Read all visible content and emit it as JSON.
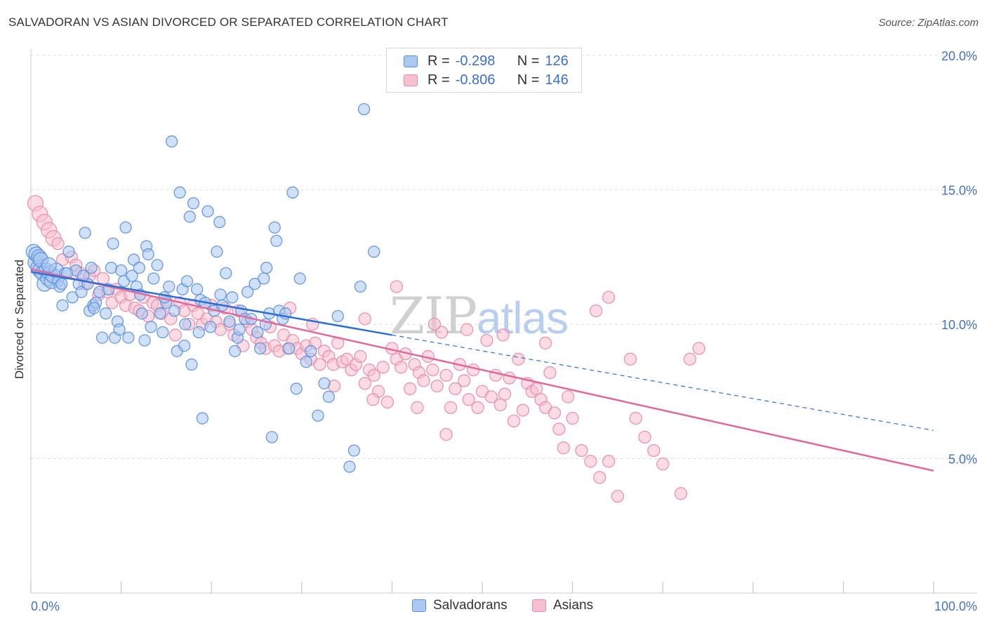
{
  "header": {
    "title": "SALVADORAN VS ASIAN DIVORCED OR SEPARATED CORRELATION CHART",
    "source": "Source: ZipAtlas.com"
  },
  "watermark": {
    "zip": "ZIP",
    "atlas": "atlas"
  },
  "legend": {
    "rows": [
      {
        "r_label": "R =",
        "r_value": "-0.298",
        "n_label": "N =",
        "n_value": "126"
      },
      {
        "r_label": "R =",
        "r_value": "-0.806",
        "n_label": "N =",
        "n_value": "146"
      }
    ]
  },
  "bottom_legend": [
    "Salvadorans",
    "Asians"
  ],
  "colors": {
    "salvadoran_fill": "#aac8f0",
    "salvadoran_stroke": "#5b8fdc",
    "salvadoran_line": "#2d6fd6",
    "asian_fill": "#f7c0d0",
    "asian_stroke": "#e88aa8",
    "asian_line": "#e0699a",
    "grid": "#dddddd",
    "tick_text": "#4472c4"
  },
  "chart_data": {
    "type": "scatter",
    "title": "SALVADORAN VS ASIAN DIVORCED OR SEPARATED CORRELATION CHART",
    "xlabel": "",
    "ylabel": "Divorced or Separated",
    "xlim": [
      0,
      100
    ],
    "ylim": [
      0,
      20
    ],
    "x_ticks_labeled": [
      "0.0%",
      "100.0%"
    ],
    "y_ticks": [
      {
        "value": 5,
        "label": "5.0%"
      },
      {
        "value": 10,
        "label": "10.0%"
      },
      {
        "value": 15,
        "label": "15.0%"
      },
      {
        "value": 20,
        "label": "20.0%"
      }
    ],
    "grid": "horizontal dashed",
    "legend_position": "top-center",
    "series": [
      {
        "name": "Salvadorans",
        "r": -0.298,
        "n": 126,
        "trend": {
          "x0": 0,
          "y0": 11.95,
          "x1": 40,
          "y1": 9.6,
          "dash_to_x": 100,
          "dash_to_y": 6.05
        },
        "points": [
          [
            0.3,
            12.7
          ],
          [
            0.5,
            12.3
          ],
          [
            0.6,
            12.6
          ],
          [
            0.8,
            12.1
          ],
          [
            0.9,
            12.5
          ],
          [
            1.0,
            12.0
          ],
          [
            1.1,
            12.4
          ],
          [
            1.3,
            11.9
          ],
          [
            1.5,
            11.5
          ],
          [
            1.7,
            12.0
          ],
          [
            1.9,
            11.7
          ],
          [
            2.1,
            11.9
          ],
          [
            2.3,
            11.6
          ],
          [
            2.5,
            11.8
          ],
          [
            2.8,
            12.0
          ],
          [
            3.0,
            11.6
          ],
          [
            3.2,
            11.4
          ],
          [
            3.5,
            10.7
          ],
          [
            3.8,
            11.9
          ],
          [
            4.2,
            12.7
          ],
          [
            4.6,
            11.0
          ],
          [
            5.0,
            12.0
          ],
          [
            5.3,
            11.5
          ],
          [
            5.6,
            11.2
          ],
          [
            6.0,
            13.4
          ],
          [
            6.3,
            11.5
          ],
          [
            6.5,
            10.5
          ],
          [
            6.9,
            10.7
          ],
          [
            7.2,
            10.8
          ],
          [
            7.6,
            11.2
          ],
          [
            7.9,
            9.5
          ],
          [
            8.3,
            10.4
          ],
          [
            8.6,
            11.3
          ],
          [
            8.9,
            12.1
          ],
          [
            9.1,
            13.0
          ],
          [
            9.3,
            9.5
          ],
          [
            9.6,
            10.1
          ],
          [
            10.0,
            12.0
          ],
          [
            10.3,
            11.6
          ],
          [
            10.5,
            13.6
          ],
          [
            10.8,
            9.5
          ],
          [
            11.2,
            11.8
          ],
          [
            11.4,
            12.4
          ],
          [
            11.7,
            11.4
          ],
          [
            12.0,
            12.1
          ],
          [
            12.3,
            10.4
          ],
          [
            12.6,
            9.4
          ],
          [
            12.8,
            12.9
          ],
          [
            13.0,
            12.6
          ],
          [
            13.3,
            9.9
          ],
          [
            13.6,
            11.7
          ],
          [
            14.0,
            12.2
          ],
          [
            14.3,
            10.4
          ],
          [
            14.6,
            9.7
          ],
          [
            15.0,
            10.8
          ],
          [
            15.3,
            11.4
          ],
          [
            15.6,
            16.8
          ],
          [
            15.9,
            10.5
          ],
          [
            16.2,
            9.0
          ],
          [
            16.5,
            14.9
          ],
          [
            16.8,
            11.3
          ],
          [
            17.0,
            9.2
          ],
          [
            17.3,
            11.6
          ],
          [
            17.6,
            14.0
          ],
          [
            17.8,
            8.5
          ],
          [
            18.0,
            14.5
          ],
          [
            18.4,
            11.3
          ],
          [
            18.8,
            10.9
          ],
          [
            19.0,
            6.5
          ],
          [
            19.3,
            10.8
          ],
          [
            19.6,
            14.2
          ],
          [
            19.9,
            9.9
          ],
          [
            20.3,
            10.5
          ],
          [
            20.6,
            12.7
          ],
          [
            20.9,
            13.8
          ],
          [
            21.2,
            10.7
          ],
          [
            21.6,
            11.9
          ],
          [
            22.0,
            10.1
          ],
          [
            22.3,
            11.0
          ],
          [
            22.6,
            9.0
          ],
          [
            22.9,
            9.5
          ],
          [
            23.3,
            10.5
          ],
          [
            23.7,
            10.2
          ],
          [
            24.0,
            11.2
          ],
          [
            24.4,
            10.2
          ],
          [
            24.8,
            11.5
          ],
          [
            25.1,
            9.7
          ],
          [
            25.4,
            9.1
          ],
          [
            25.8,
            11.7
          ],
          [
            26.1,
            12.1
          ],
          [
            26.4,
            10.4
          ],
          [
            26.7,
            5.8
          ],
          [
            27.0,
            13.6
          ],
          [
            27.2,
            13.1
          ],
          [
            27.5,
            10.5
          ],
          [
            27.9,
            10.2
          ],
          [
            28.2,
            10.4
          ],
          [
            28.6,
            9.1
          ],
          [
            29.0,
            14.9
          ],
          [
            29.4,
            7.6
          ],
          [
            29.8,
            11.7
          ],
          [
            30.5,
            8.6
          ],
          [
            31.0,
            9.0
          ],
          [
            31.8,
            6.6
          ],
          [
            32.5,
            7.8
          ],
          [
            33.0,
            7.3
          ],
          [
            34.0,
            10.3
          ],
          [
            35.3,
            4.7
          ],
          [
            35.8,
            5.3
          ],
          [
            36.5,
            11.4
          ],
          [
            36.9,
            18.0
          ],
          [
            38.0,
            12.7
          ],
          [
            4.0,
            11.9
          ],
          [
            5.8,
            11.8
          ],
          [
            7.0,
            10.6
          ],
          [
            9.8,
            9.8
          ],
          [
            12.1,
            11.1
          ],
          [
            14.8,
            11.0
          ],
          [
            17.1,
            10.0
          ],
          [
            18.6,
            9.7
          ],
          [
            21.0,
            11.1
          ],
          [
            23.1,
            9.8
          ],
          [
            26.0,
            10.0
          ],
          [
            2.0,
            12.2
          ],
          [
            3.4,
            11.5
          ],
          [
            6.7,
            12.1
          ]
        ]
      },
      {
        "name": "Asians",
        "r": -0.806,
        "n": 146,
        "trend": {
          "x0": 0,
          "y0": 12.05,
          "x1": 100,
          "y1": 4.55
        },
        "points": [
          [
            0.5,
            14.5
          ],
          [
            1.0,
            14.1
          ],
          [
            1.5,
            13.8
          ],
          [
            2.0,
            13.5
          ],
          [
            2.5,
            13.2
          ],
          [
            3.0,
            13.0
          ],
          [
            3.5,
            12.4
          ],
          [
            4.5,
            12.5
          ],
          [
            5.0,
            12.2
          ],
          [
            5.5,
            11.9
          ],
          [
            6.0,
            11.5
          ],
          [
            6.5,
            11.8
          ],
          [
            7.0,
            12.0
          ],
          [
            7.5,
            11.1
          ],
          [
            8.0,
            11.7
          ],
          [
            8.5,
            11.2
          ],
          [
            9.0,
            10.8
          ],
          [
            9.5,
            11.3
          ],
          [
            10.0,
            11.0
          ],
          [
            10.5,
            10.7
          ],
          [
            11.0,
            11.1
          ],
          [
            11.5,
            10.6
          ],
          [
            12.0,
            10.5
          ],
          [
            12.5,
            11.0
          ],
          [
            13.0,
            10.3
          ],
          [
            13.5,
            10.8
          ],
          [
            14.0,
            10.7
          ],
          [
            14.5,
            10.4
          ],
          [
            15.0,
            10.9
          ],
          [
            15.5,
            10.2
          ],
          [
            16.0,
            9.6
          ],
          [
            16.5,
            10.8
          ],
          [
            17.0,
            10.5
          ],
          [
            17.5,
            10.0
          ],
          [
            18.0,
            10.7
          ],
          [
            18.5,
            10.4
          ],
          [
            19.0,
            10.0
          ],
          [
            19.5,
            10.2
          ],
          [
            20.0,
            10.7
          ],
          [
            20.5,
            10.1
          ],
          [
            21.0,
            9.8
          ],
          [
            21.5,
            10.6
          ],
          [
            22.0,
            10.0
          ],
          [
            22.5,
            9.6
          ],
          [
            23.0,
            10.5
          ],
          [
            23.5,
            9.2
          ],
          [
            24.0,
            10.1
          ],
          [
            24.5,
            9.8
          ],
          [
            25.0,
            9.5
          ],
          [
            25.5,
            9.3
          ],
          [
            26.0,
            9.1
          ],
          [
            26.5,
            9.9
          ],
          [
            27.0,
            9.2
          ],
          [
            27.5,
            9.0
          ],
          [
            28.0,
            9.6
          ],
          [
            28.5,
            9.1
          ],
          [
            29.0,
            9.4
          ],
          [
            29.5,
            9.1
          ],
          [
            30.0,
            8.9
          ],
          [
            30.5,
            9.2
          ],
          [
            31.0,
            8.7
          ],
          [
            31.5,
            9.3
          ],
          [
            32.0,
            8.5
          ],
          [
            32.5,
            9.0
          ],
          [
            33.0,
            8.8
          ],
          [
            33.5,
            8.5
          ],
          [
            34.0,
            9.3
          ],
          [
            34.5,
            8.6
          ],
          [
            35.0,
            8.7
          ],
          [
            35.5,
            8.3
          ],
          [
            36.0,
            8.5
          ],
          [
            36.5,
            8.8
          ],
          [
            37.0,
            7.8
          ],
          [
            37.5,
            8.3
          ],
          [
            38.0,
            8.1
          ],
          [
            38.5,
            7.5
          ],
          [
            39.0,
            8.4
          ],
          [
            39.5,
            7.1
          ],
          [
            40.0,
            9.1
          ],
          [
            40.5,
            8.7
          ],
          [
            41.0,
            8.4
          ],
          [
            41.5,
            8.9
          ],
          [
            42.0,
            7.6
          ],
          [
            42.5,
            8.5
          ],
          [
            43.0,
            8.2
          ],
          [
            43.5,
            7.9
          ],
          [
            44.0,
            8.8
          ],
          [
            44.5,
            8.3
          ],
          [
            45.0,
            7.7
          ],
          [
            45.5,
            9.7
          ],
          [
            46.0,
            8.1
          ],
          [
            46.5,
            6.9
          ],
          [
            47.0,
            7.6
          ],
          [
            47.5,
            8.5
          ],
          [
            48.0,
            7.9
          ],
          [
            48.5,
            7.2
          ],
          [
            49.0,
            8.3
          ],
          [
            49.5,
            6.9
          ],
          [
            50.0,
            7.5
          ],
          [
            50.5,
            9.4
          ],
          [
            51.0,
            7.3
          ],
          [
            51.5,
            8.1
          ],
          [
            52.0,
            7.0
          ],
          [
            52.5,
            7.4
          ],
          [
            53.0,
            8.0
          ],
          [
            53.5,
            6.4
          ],
          [
            54.0,
            8.7
          ],
          [
            54.5,
            6.8
          ],
          [
            55.0,
            7.8
          ],
          [
            55.5,
            7.5
          ],
          [
            56.0,
            7.6
          ],
          [
            56.5,
            7.2
          ],
          [
            57.0,
            6.9
          ],
          [
            57.5,
            8.2
          ],
          [
            58.0,
            6.7
          ],
          [
            58.5,
            6.1
          ],
          [
            59.0,
            5.4
          ],
          [
            59.5,
            7.3
          ],
          [
            60.0,
            6.5
          ],
          [
            61.0,
            5.3
          ],
          [
            62.0,
            4.9
          ],
          [
            63.0,
            4.3
          ],
          [
            64.0,
            4.9
          ],
          [
            65.0,
            3.6
          ],
          [
            67.0,
            6.5
          ],
          [
            68.0,
            5.8
          ],
          [
            69.0,
            5.3
          ],
          [
            70.0,
            4.8
          ],
          [
            72.0,
            3.7
          ],
          [
            73.0,
            8.7
          ],
          [
            74.0,
            9.1
          ],
          [
            37.0,
            10.2
          ],
          [
            40.5,
            11.4
          ],
          [
            44.7,
            10.0
          ],
          [
            48.3,
            9.8
          ],
          [
            52.3,
            9.6
          ],
          [
            57.0,
            9.3
          ],
          [
            62.6,
            10.5
          ],
          [
            64.0,
            11.0
          ],
          [
            66.4,
            8.7
          ],
          [
            33.6,
            7.7
          ],
          [
            37.9,
            7.2
          ],
          [
            42.8,
            6.9
          ],
          [
            46.0,
            5.9
          ],
          [
            31.2,
            10.0
          ],
          [
            28.7,
            10.6
          ]
        ]
      }
    ]
  }
}
